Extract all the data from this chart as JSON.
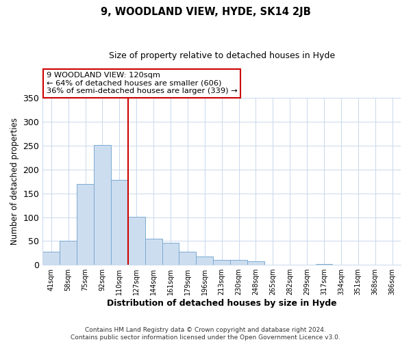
{
  "title": "9, WOODLAND VIEW, HYDE, SK14 2JB",
  "subtitle": "Size of property relative to detached houses in Hyde",
  "xlabel": "Distribution of detached houses by size in Hyde",
  "ylabel": "Number of detached properties",
  "bin_labels": [
    "41sqm",
    "58sqm",
    "75sqm",
    "92sqm",
    "110sqm",
    "127sqm",
    "144sqm",
    "161sqm",
    "179sqm",
    "196sqm",
    "213sqm",
    "230sqm",
    "248sqm",
    "265sqm",
    "282sqm",
    "299sqm",
    "317sqm",
    "334sqm",
    "351sqm",
    "368sqm",
    "386sqm"
  ],
  "bar_heights": [
    28,
    50,
    170,
    252,
    178,
    101,
    55,
    46,
    28,
    17,
    11,
    10,
    7,
    0,
    0,
    0,
    2,
    0,
    1,
    0,
    1
  ],
  "bar_color": "#cdddf0",
  "bar_edge_color": "#7aaad0",
  "vline_x_index": 4.5,
  "vline_color": "#cc0000",
  "annotation_title": "9 WOODLAND VIEW: 120sqm",
  "annotation_line1": "← 64% of detached houses are smaller (606)",
  "annotation_line2": "36% of semi-detached houses are larger (339) →",
  "ylim": [
    0,
    350
  ],
  "yticks": [
    0,
    50,
    100,
    150,
    200,
    250,
    300,
    350
  ],
  "footer1": "Contains HM Land Registry data © Crown copyright and database right 2024.",
  "footer2": "Contains public sector information licensed under the Open Government Licence v3.0.",
  "bg_color": "#ffffff",
  "grid_color": "#c8d8ec"
}
